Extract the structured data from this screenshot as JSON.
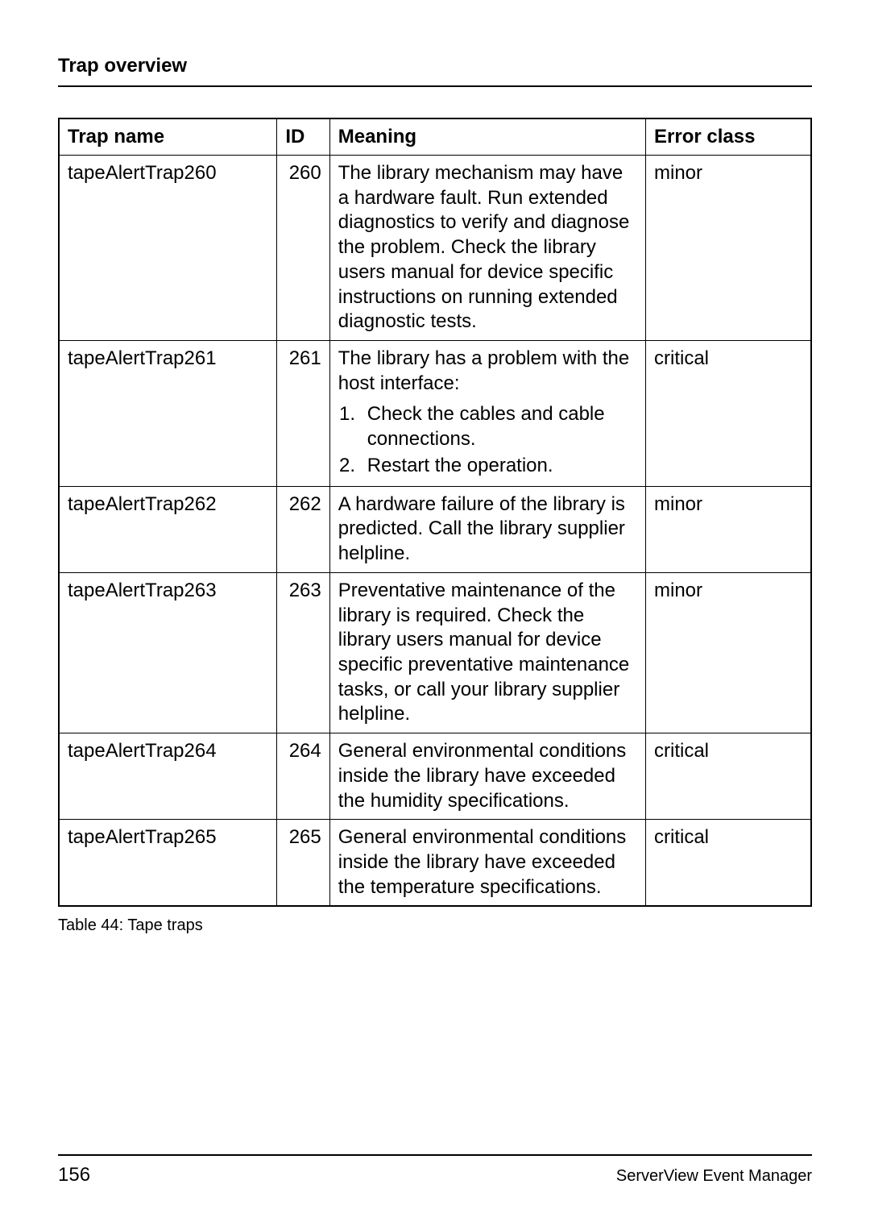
{
  "header": {
    "title": "Trap overview"
  },
  "table": {
    "columns": {
      "trap_name": "Trap name",
      "id": "ID",
      "meaning": "Meaning",
      "error_class": "Error class"
    },
    "rows": [
      {
        "trap_name": "tapeAlertTrap260",
        "id": "260",
        "meaning_text": "The library mechanism may have a hardware fault. Run extended diagnostics to verify and diagnose the problem. Check the library users manual for device specific instructions on running extended diagnostic tests.",
        "error_class": "minor"
      },
      {
        "trap_name": "tapeAlertTrap261",
        "id": "261",
        "meaning_text": "The library has a problem with the host interface:",
        "meaning_list_1": "Check the cables and cable connections.",
        "meaning_list_2": "Restart the operation.",
        "error_class": "critical"
      },
      {
        "trap_name": "tapeAlertTrap262",
        "id": "262",
        "meaning_text": "A hardware failure of the library is predicted. Call the library supplier helpline.",
        "error_class": "minor"
      },
      {
        "trap_name": "tapeAlertTrap263",
        "id": "263",
        "meaning_text": "Preventative maintenance of the library is required. Check the library users manual for device specific preventative maintenance tasks, or call your library supplier helpline.",
        "error_class": "minor"
      },
      {
        "trap_name": "tapeAlertTrap264",
        "id": "264",
        "meaning_text": "General environmental conditions inside the library have exceeded the humidity specifications.",
        "error_class": "critical"
      },
      {
        "trap_name": "tapeAlertTrap265",
        "id": "265",
        "meaning_text": "General environmental conditions inside the library have exceeded the temperature specifications.",
        "error_class": "critical"
      }
    ]
  },
  "caption": "Table 44: Tape traps",
  "footer": {
    "page_number": "156",
    "doc_title": "ServerView Event Manager"
  }
}
